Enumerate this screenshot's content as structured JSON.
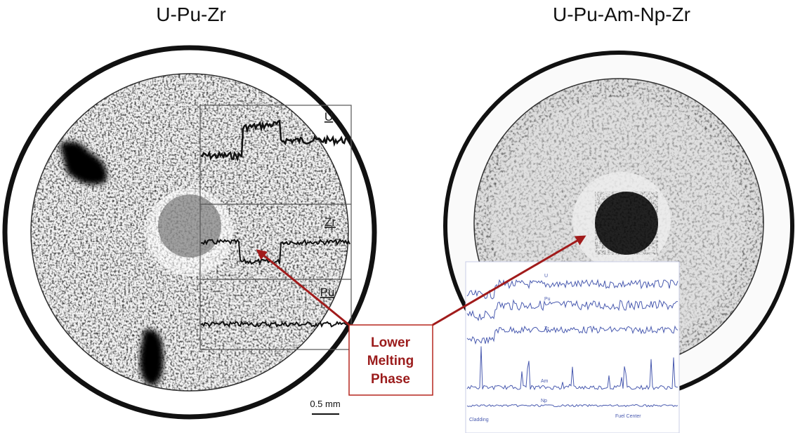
{
  "left": {
    "title": "U-Pu-Zr",
    "profile_labels": [
      "U",
      "Zr",
      "Pu"
    ],
    "scale_bar": "0.5 mm"
  },
  "right": {
    "title": "U-Pu-Am-Np-Zr",
    "inset": {
      "trace_labels": [
        "U",
        "Pu",
        "Zr",
        "Am",
        "Np"
      ],
      "axis_labels": [
        "Cladding",
        "Fuel Center"
      ]
    }
  },
  "callout": "Lower Melting Phase"
}
